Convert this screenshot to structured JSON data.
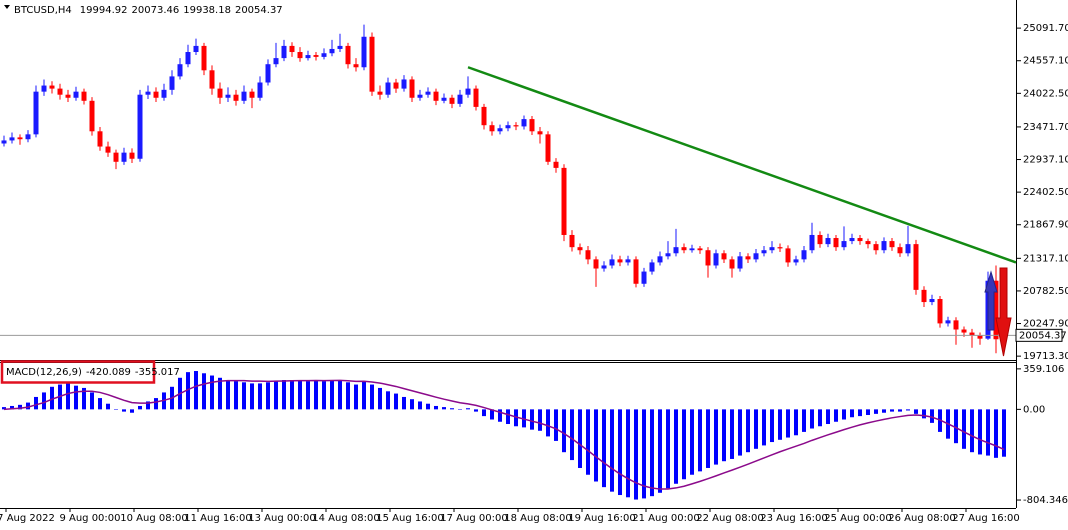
{
  "chart_data": [
    {
      "type": "candlestick",
      "symbol": "BTCUSD,H4",
      "bull_color": "#1a1aff",
      "bear_color": "#ff0000",
      "ylim": [
        19650,
        25520
      ],
      "yticks": [
        {
          "value": 25091.7,
          "label": "25091.70"
        },
        {
          "value": 24557.1,
          "label": "24557.10"
        },
        {
          "value": 24022.5,
          "label": "24022.50"
        },
        {
          "value": 23471.7,
          "label": "23471.70"
        },
        {
          "value": 22937.1,
          "label": "22937.10"
        },
        {
          "value": 22402.5,
          "label": "22402.50"
        },
        {
          "value": 21867.9,
          "label": "21867.90"
        },
        {
          "value": 21317.1,
          "label": "21317.10"
        },
        {
          "value": 20782.5,
          "label": "20782.50"
        },
        {
          "value": 20247.9,
          "label": "20247.90"
        },
        {
          "value": 19713.3,
          "label": "19713.30"
        }
      ],
      "trendline": {
        "color": "#138a13",
        "start_index": 58,
        "start_price": 24450,
        "end_index": 126.5,
        "end_price": 21250
      },
      "ohlc": [
        [
          23200,
          23330,
          23150,
          23250
        ],
        [
          23250,
          23380,
          23200,
          23300
        ],
        [
          23300,
          23350,
          23180,
          23270
        ],
        [
          23270,
          23420,
          23220,
          23350
        ],
        [
          23350,
          24150,
          23300,
          24050
        ],
        [
          24050,
          24250,
          23980,
          24150
        ],
        [
          24150,
          24220,
          24020,
          24100
        ],
        [
          24100,
          24180,
          23920,
          24000
        ],
        [
          24000,
          24080,
          23880,
          23950
        ],
        [
          23950,
          24130,
          23900,
          24050
        ],
        [
          24050,
          24100,
          23840,
          23900
        ],
        [
          23900,
          23960,
          23330,
          23400
        ],
        [
          23400,
          23470,
          23080,
          23150
        ],
        [
          23150,
          23230,
          22980,
          23050
        ],
        [
          23050,
          23100,
          22780,
          22900
        ],
        [
          22900,
          23130,
          22850,
          23050
        ],
        [
          23050,
          23120,
          22880,
          22950
        ],
        [
          22950,
          24080,
          22900,
          24000
        ],
        [
          24000,
          24150,
          23930,
          24050
        ],
        [
          24050,
          24120,
          23880,
          23950
        ],
        [
          23950,
          24180,
          23900,
          24080
        ],
        [
          24080,
          24400,
          24000,
          24300
        ],
        [
          24300,
          24600,
          24250,
          24500
        ],
        [
          24500,
          24820,
          24450,
          24700
        ],
        [
          24700,
          24920,
          24650,
          24800
        ],
        [
          24800,
          24850,
          24320,
          24400
        ],
        [
          24400,
          24480,
          24000,
          24100
        ],
        [
          24100,
          24200,
          23850,
          23950
        ],
        [
          23950,
          24120,
          23880,
          24000
        ],
        [
          24000,
          24080,
          23820,
          23900
        ],
        [
          23900,
          24150,
          23850,
          24050
        ],
        [
          24050,
          24100,
          23780,
          23950
        ],
        [
          23950,
          24300,
          23900,
          24200
        ],
        [
          24200,
          24580,
          24150,
          24500
        ],
        [
          24500,
          24850,
          24450,
          24600
        ],
        [
          24600,
          24900,
          24550,
          24800
        ],
        [
          24800,
          24860,
          24620,
          24700
        ],
        [
          24700,
          24780,
          24540,
          24600
        ],
        [
          24600,
          24720,
          24560,
          24650
        ],
        [
          24650,
          24700,
          24560,
          24620
        ],
        [
          24620,
          24760,
          24580,
          24680
        ],
        [
          24680,
          24900,
          24630,
          24750
        ],
        [
          24750,
          25000,
          24700,
          24800
        ],
        [
          24800,
          24850,
          24430,
          24500
        ],
        [
          24500,
          24600,
          24380,
          24450
        ],
        [
          24450,
          25150,
          24400,
          24950
        ],
        [
          24950,
          25020,
          23980,
          24050
        ],
        [
          24050,
          24150,
          23920,
          24000
        ],
        [
          24000,
          24280,
          23950,
          24200
        ],
        [
          24200,
          24260,
          24030,
          24100
        ],
        [
          24100,
          24320,
          24050,
          24250
        ],
        [
          24250,
          24300,
          23880,
          23950
        ],
        [
          23950,
          24080,
          23900,
          24000
        ],
        [
          24000,
          24120,
          23950,
          24050
        ],
        [
          24050,
          24100,
          23830,
          23900
        ],
        [
          23900,
          24020,
          23860,
          23950
        ],
        [
          23950,
          24000,
          23780,
          23850
        ],
        [
          23850,
          24080,
          23800,
          24000
        ],
        [
          24000,
          24300,
          23950,
          24100
        ],
        [
          24100,
          24150,
          23740,
          23800
        ],
        [
          23800,
          23850,
          23430,
          23500
        ],
        [
          23500,
          23560,
          23330,
          23400
        ],
        [
          23400,
          23510,
          23350,
          23450
        ],
        [
          23450,
          23560,
          23400,
          23500
        ],
        [
          23500,
          23550,
          23420,
          23480
        ],
        [
          23480,
          23660,
          23430,
          23600
        ],
        [
          23600,
          23650,
          23340,
          23400
        ],
        [
          23400,
          23470,
          23200,
          23350
        ],
        [
          23350,
          23400,
          22850,
          22900
        ],
        [
          22900,
          22960,
          22720,
          22800
        ],
        [
          22800,
          22860,
          21600,
          21700
        ],
        [
          21700,
          21780,
          21430,
          21500
        ],
        [
          21500,
          21560,
          21380,
          21450
        ],
        [
          21450,
          21520,
          21220,
          21300
        ],
        [
          21300,
          21350,
          20850,
          21150
        ],
        [
          21150,
          21270,
          21100,
          21200
        ],
        [
          21200,
          21380,
          21150,
          21300
        ],
        [
          21300,
          21360,
          21190,
          21250
        ],
        [
          21250,
          21360,
          21200,
          21300
        ],
        [
          21300,
          21350,
          20840,
          20900
        ],
        [
          20900,
          21160,
          20850,
          21100
        ],
        [
          21100,
          21300,
          21050,
          21250
        ],
        [
          21250,
          21430,
          21200,
          21350
        ],
        [
          21350,
          21600,
          21300,
          21400
        ],
        [
          21400,
          21800,
          21350,
          21500
        ],
        [
          21500,
          21560,
          21400,
          21450
        ],
        [
          21450,
          21540,
          21410,
          21480
        ],
        [
          21480,
          21520,
          21390,
          21450
        ],
        [
          21450,
          21500,
          21000,
          21200
        ],
        [
          21200,
          21460,
          21150,
          21400
        ],
        [
          21400,
          21450,
          21240,
          21300
        ],
        [
          21300,
          21350,
          21000,
          21150
        ],
        [
          21150,
          21420,
          21100,
          21350
        ],
        [
          21350,
          21400,
          21240,
          21300
        ],
        [
          21300,
          21470,
          21250,
          21400
        ],
        [
          21400,
          21520,
          21350,
          21450
        ],
        [
          21450,
          21600,
          21400,
          21500
        ],
        [
          21500,
          21560,
          21420,
          21480
        ],
        [
          21480,
          21530,
          21180,
          21250
        ],
        [
          21250,
          21360,
          21200,
          21300
        ],
        [
          21300,
          21520,
          21250,
          21450
        ],
        [
          21450,
          21900,
          21400,
          21700
        ],
        [
          21700,
          21760,
          21490,
          21550
        ],
        [
          21550,
          21720,
          21500,
          21650
        ],
        [
          21650,
          21700,
          21440,
          21500
        ],
        [
          21500,
          21840,
          21450,
          21600
        ],
        [
          21600,
          21720,
          21550,
          21650
        ],
        [
          21650,
          21700,
          21540,
          21600
        ],
        [
          21600,
          21640,
          21480,
          21550
        ],
        [
          21550,
          21600,
          21380,
          21450
        ],
        [
          21450,
          21660,
          21400,
          21600
        ],
        [
          21600,
          21650,
          21440,
          21500
        ],
        [
          21500,
          21560,
          21340,
          21400
        ],
        [
          21400,
          21850,
          21350,
          21550
        ],
        [
          21550,
          21620,
          20720,
          20800
        ],
        [
          20800,
          20860,
          20520,
          20600
        ],
        [
          20600,
          20720,
          20550,
          20650
        ],
        [
          20650,
          20700,
          20180,
          20250
        ],
        [
          20250,
          20360,
          20200,
          20300
        ],
        [
          20300,
          20350,
          19900,
          20150
        ],
        [
          20150,
          20200,
          20030,
          20100
        ],
        [
          20100,
          20160,
          19850,
          20050
        ],
        [
          20050,
          20100,
          19900,
          20000
        ],
        [
          20000,
          21100,
          19980,
          20950
        ],
        [
          20950,
          21200,
          19760,
          19990
        ],
        [
          19994.92,
          20073.46,
          19938.18,
          20054.37
        ]
      ]
    },
    {
      "type": "macd",
      "label": "MACD(12,26,9)",
      "ylim": [
        -875,
        420
      ],
      "yticks": [
        359.106,
        {
          "value": 0,
          "label": "0.00"
        },
        -804.346
      ],
      "xlabels": [
        "7 Aug 2022",
        "9 Aug 00:00",
        "10 Aug 08:00",
        "11 Aug 16:00",
        "13 Aug 00:00",
        "14 Aug 08:00",
        "15 Aug 16:00",
        "17 Aug 00:00",
        "18 Aug 08:00",
        "19 Aug 16:00",
        "21 Aug 00:00",
        "22 Aug 08:00",
        "23 Aug 16:00",
        "25 Aug 00:00",
        "26 Aug 08:00",
        "27 Aug 16:00"
      ],
      "macd": {
        "color": "#0000ff",
        "values": [
          20,
          30,
          40,
          60,
          110,
          150,
          200,
          220,
          230,
          210,
          190,
          150,
          100,
          50,
          0,
          -20,
          -30,
          30,
          70,
          100,
          150,
          200,
          280,
          330,
          340,
          320,
          300,
          280,
          260,
          250,
          240,
          230,
          230,
          240,
          250,
          260,
          260,
          260,
          250,
          260,
          250,
          260,
          260,
          240,
          220,
          250,
          220,
          190,
          160,
          140,
          110,
          90,
          70,
          50,
          30,
          20,
          10,
          0,
          10,
          -20,
          -60,
          -90,
          -110,
          -130,
          -150,
          -160,
          -180,
          -190,
          -240,
          -280,
          -380,
          -450,
          -520,
          -580,
          -640,
          -690,
          -730,
          -760,
          -780,
          -800,
          -790,
          -770,
          -740,
          -700,
          -660,
          -620,
          -580,
          -550,
          -520,
          -490,
          -460,
          -440,
          -410,
          -380,
          -350,
          -320,
          -290,
          -270,
          -250,
          -230,
          -200,
          -170,
          -150,
          -130,
          -110,
          -90,
          -70,
          -60,
          -50,
          -40,
          -30,
          -20,
          -20,
          -10,
          -40,
          -80,
          -120,
          -200,
          -260,
          -300,
          -350,
          -380,
          -400,
          -410,
          -430,
          -420.089
        ]
      },
      "signal": {
        "color": "#8b0a8b",
        "values": [
          0,
          5,
          10,
          20,
          40,
          60,
          90,
          115,
          140,
          155,
          160,
          160,
          150,
          130,
          105,
          80,
          60,
          55,
          55,
          65,
          80,
          100,
          140,
          175,
          205,
          225,
          240,
          250,
          255,
          255,
          255,
          250,
          250,
          248,
          250,
          252,
          254,
          255,
          255,
          256,
          255,
          256,
          257,
          254,
          248,
          249,
          243,
          233,
          218,
          203,
          184,
          165,
          146,
          127,
          108,
          90,
          74,
          59,
          49,
          35,
          16,
          -5,
          -26,
          -47,
          -68,
          -86,
          -105,
          -122,
          -146,
          -173,
          -214,
          -261,
          -313,
          -366,
          -421,
          -475,
          -526,
          -573,
          -615,
          -652,
          -680,
          -698,
          -707,
          -706,
          -697,
          -682,
          -661,
          -639,
          -615,
          -590,
          -564,
          -539,
          -513,
          -486,
          -459,
          -431,
          -403,
          -376,
          -351,
          -327,
          -302,
          -275,
          -250,
          -226,
          -203,
          -180,
          -158,
          -138,
          -120,
          -104,
          -89,
          -75,
          -64,
          -53,
          -50,
          -56,
          -69,
          -95,
          -128,
          -163,
          -200,
          -236,
          -269,
          -297,
          -324,
          -355.017
        ]
      }
    }
  ]
}
